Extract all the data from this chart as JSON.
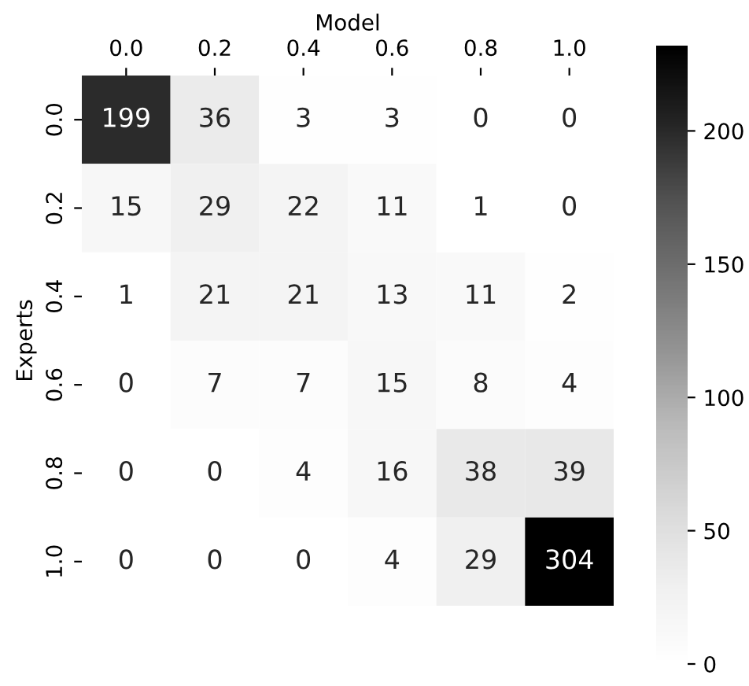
{
  "chart_data": {
    "type": "heatmap",
    "xlabel": "Model",
    "ylabel": "Experts",
    "categories": [
      "0.0",
      "0.2",
      "0.4",
      "0.6",
      "0.8",
      "1.0"
    ],
    "y_categories": [
      "0.0",
      "0.2",
      "0.4",
      "0.6",
      "0.8",
      "1.0"
    ],
    "cells": [
      [
        199,
        36,
        3,
        3,
        0,
        0
      ],
      [
        15,
        29,
        22,
        11,
        1,
        0
      ],
      [
        1,
        21,
        21,
        13,
        11,
        2
      ],
      [
        0,
        7,
        7,
        15,
        8,
        4
      ],
      [
        0,
        0,
        4,
        16,
        38,
        39
      ],
      [
        0,
        0,
        0,
        4,
        29,
        304
      ]
    ],
    "clim": [
      0,
      232
    ],
    "cticks": [
      0,
      50,
      100,
      150,
      200
    ],
    "data_labels": true
  }
}
